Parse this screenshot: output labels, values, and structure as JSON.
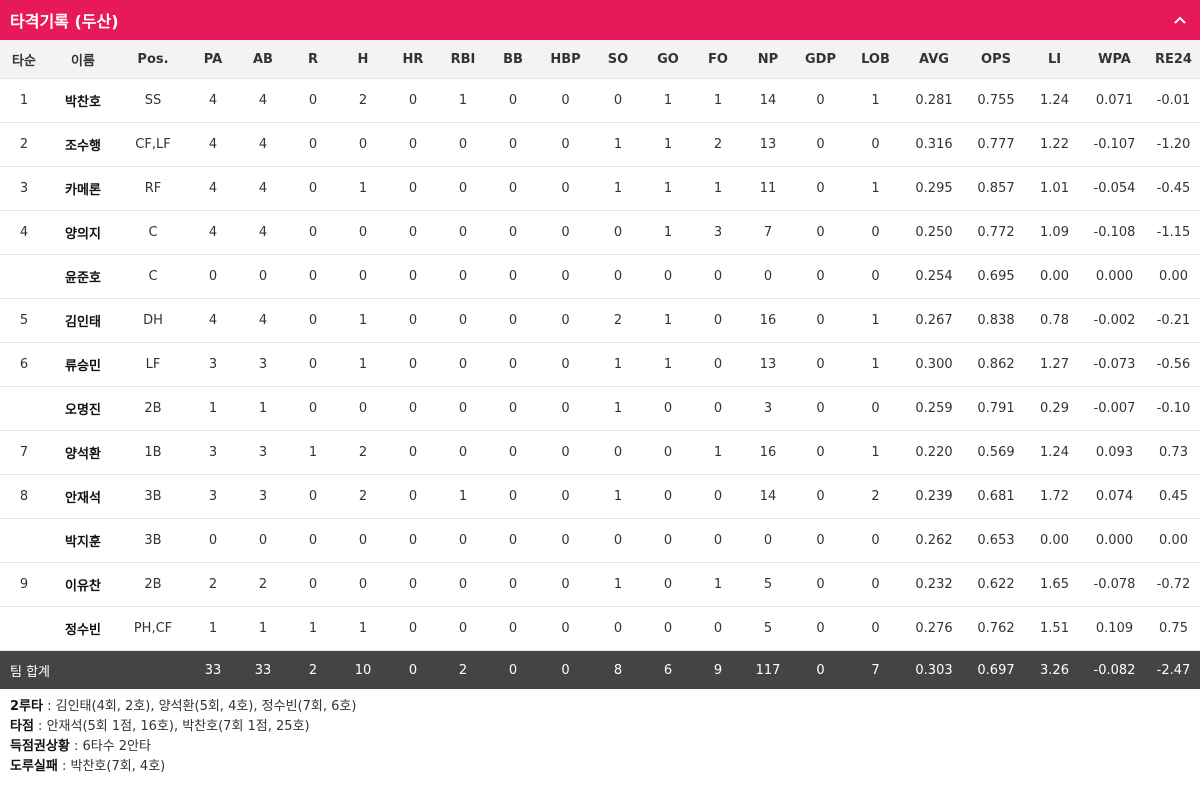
{
  "header": {
    "title": "타격기록 (두산)",
    "collapse_icon": "chevron-up-icon"
  },
  "columns": [
    "타순",
    "이름",
    "Pos.",
    "PA",
    "AB",
    "R",
    "H",
    "HR",
    "RBI",
    "BB",
    "HBP",
    "SO",
    "GO",
    "FO",
    "NP",
    "GDP",
    "LOB",
    "AVG",
    "OPS",
    "LI",
    "WPA",
    "RE24"
  ],
  "rows": [
    [
      "1",
      "박찬호",
      "SS",
      "4",
      "4",
      "0",
      "2",
      "0",
      "1",
      "0",
      "0",
      "0",
      "1",
      "1",
      "14",
      "0",
      "1",
      "0.281",
      "0.755",
      "1.24",
      "0.071",
      "-0.01"
    ],
    [
      "2",
      "조수행",
      "CF,LF",
      "4",
      "4",
      "0",
      "0",
      "0",
      "0",
      "0",
      "0",
      "1",
      "1",
      "2",
      "13",
      "0",
      "0",
      "0.316",
      "0.777",
      "1.22",
      "-0.107",
      "-1.20"
    ],
    [
      "3",
      "카메론",
      "RF",
      "4",
      "4",
      "0",
      "1",
      "0",
      "0",
      "0",
      "0",
      "1",
      "1",
      "1",
      "11",
      "0",
      "1",
      "0.295",
      "0.857",
      "1.01",
      "-0.054",
      "-0.45"
    ],
    [
      "4",
      "양의지",
      "C",
      "4",
      "4",
      "0",
      "0",
      "0",
      "0",
      "0",
      "0",
      "0",
      "1",
      "3",
      "7",
      "0",
      "0",
      "0.250",
      "0.772",
      "1.09",
      "-0.108",
      "-1.15"
    ],
    [
      "",
      "윤준호",
      "C",
      "0",
      "0",
      "0",
      "0",
      "0",
      "0",
      "0",
      "0",
      "0",
      "0",
      "0",
      "0",
      "0",
      "0",
      "0.254",
      "0.695",
      "0.00",
      "0.000",
      "0.00"
    ],
    [
      "5",
      "김인태",
      "DH",
      "4",
      "4",
      "0",
      "1",
      "0",
      "0",
      "0",
      "0",
      "2",
      "1",
      "0",
      "16",
      "0",
      "1",
      "0.267",
      "0.838",
      "0.78",
      "-0.002",
      "-0.21"
    ],
    [
      "6",
      "류승민",
      "LF",
      "3",
      "3",
      "0",
      "1",
      "0",
      "0",
      "0",
      "0",
      "1",
      "1",
      "0",
      "13",
      "0",
      "1",
      "0.300",
      "0.862",
      "1.27",
      "-0.073",
      "-0.56"
    ],
    [
      "",
      "오명진",
      "2B",
      "1",
      "1",
      "0",
      "0",
      "0",
      "0",
      "0",
      "0",
      "1",
      "0",
      "0",
      "3",
      "0",
      "0",
      "0.259",
      "0.791",
      "0.29",
      "-0.007",
      "-0.10"
    ],
    [
      "7",
      "양석환",
      "1B",
      "3",
      "3",
      "1",
      "2",
      "0",
      "0",
      "0",
      "0",
      "0",
      "0",
      "1",
      "16",
      "0",
      "1",
      "0.220",
      "0.569",
      "1.24",
      "0.093",
      "0.73"
    ],
    [
      "8",
      "안재석",
      "3B",
      "3",
      "3",
      "0",
      "2",
      "0",
      "1",
      "0",
      "0",
      "1",
      "0",
      "0",
      "14",
      "0",
      "2",
      "0.239",
      "0.681",
      "1.72",
      "0.074",
      "0.45"
    ],
    [
      "",
      "박지훈",
      "3B",
      "0",
      "0",
      "0",
      "0",
      "0",
      "0",
      "0",
      "0",
      "0",
      "0",
      "0",
      "0",
      "0",
      "0",
      "0.262",
      "0.653",
      "0.00",
      "0.000",
      "0.00"
    ],
    [
      "9",
      "이유찬",
      "2B",
      "2",
      "2",
      "0",
      "0",
      "0",
      "0",
      "0",
      "0",
      "1",
      "0",
      "1",
      "5",
      "0",
      "0",
      "0.232",
      "0.622",
      "1.65",
      "-0.078",
      "-0.72"
    ],
    [
      "",
      "정수빈",
      "PH,CF",
      "1",
      "1",
      "1",
      "1",
      "0",
      "0",
      "0",
      "0",
      "0",
      "0",
      "0",
      "5",
      "0",
      "0",
      "0.276",
      "0.762",
      "1.51",
      "0.109",
      "0.75"
    ]
  ],
  "totals": {
    "label": "팀 합계",
    "values": [
      "33",
      "33",
      "2",
      "10",
      "0",
      "2",
      "0",
      "0",
      "8",
      "6",
      "9",
      "117",
      "0",
      "7",
      "0.303",
      "0.697",
      "3.26",
      "-0.082",
      "-2.47"
    ]
  },
  "notes": [
    {
      "key": "2루타",
      "value": " : 김인태(4회, 2호), 양석환(5회, 4호), 정수빈(7회, 6호)"
    },
    {
      "key": "타점",
      "value": " : 안재석(5회 1점, 16호), 박찬호(7회 1점, 25호)"
    },
    {
      "key": "득점권상황",
      "value": " : 6타수 2안타"
    },
    {
      "key": "도루실패",
      "value": " : 박찬호(7회, 4호)"
    }
  ]
}
